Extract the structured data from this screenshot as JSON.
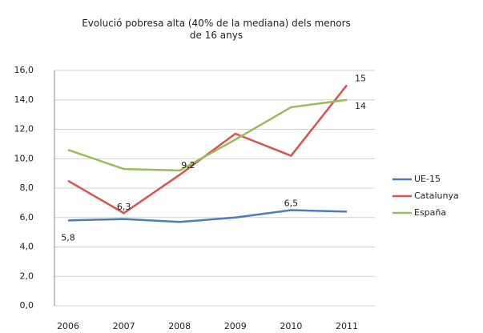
{
  "chart_data": {
    "type": "line",
    "title": "Evolució  pobresa alta (40% de la mediana) dels menors de 16 anys",
    "categories": [
      "2006",
      "2007",
      "2008",
      "2009",
      "2010",
      "2011"
    ],
    "series": [
      {
        "name": "UE-15",
        "color": "#4a7ebb",
        "values": [
          5.8,
          5.9,
          5.7,
          6.0,
          6.5,
          6.4
        ],
        "value_labels": [
          "5,8",
          null,
          null,
          null,
          "6,5",
          null
        ]
      },
      {
        "name": "Catalunya",
        "color": "#d9534f",
        "values": [
          8.5,
          6.3,
          8.9,
          11.7,
          10.2,
          15.0
        ],
        "value_labels": [
          null,
          "6,3",
          null,
          null,
          null,
          "15"
        ]
      },
      {
        "name": "España",
        "color": "#9bbb59",
        "values": [
          10.6,
          9.3,
          9.2,
          11.3,
          13.5,
          14.0
        ],
        "value_labels": [
          null,
          null,
          "9,2",
          null,
          null,
          "14"
        ]
      }
    ],
    "ylim": [
      0,
      16
    ],
    "yticks": [
      {
        "value": 0,
        "label": "0,0"
      },
      {
        "value": 2,
        "label": "2,0"
      },
      {
        "value": 4,
        "label": "4,0"
      },
      {
        "value": 6,
        "label": "6,0"
      },
      {
        "value": 8,
        "label": "8,0"
      },
      {
        "value": 10,
        "label": "10,0"
      },
      {
        "value": 12,
        "label": "12,0"
      },
      {
        "value": 14,
        "label": "14,0"
      },
      {
        "value": 16,
        "label": "16,0"
      }
    ],
    "grid": true,
    "legend": "right"
  }
}
